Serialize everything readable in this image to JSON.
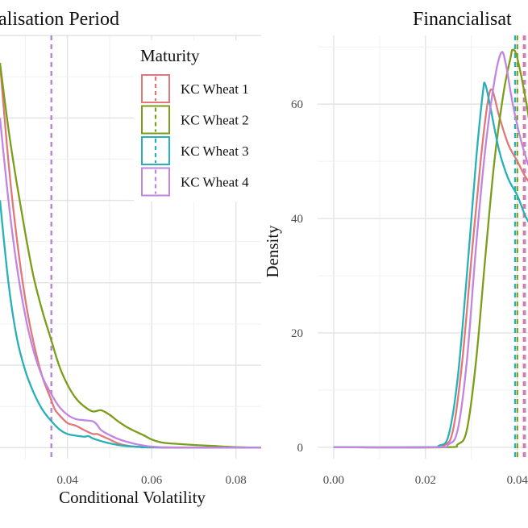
{
  "chart_data": [
    {
      "type": "line",
      "title": "Pre-Financialisation Period",
      "title_visible_text": "alisation Period",
      "xlabel": "Conditional Volatility",
      "ylabel": "",
      "xlim": [
        0.024,
        0.086
      ],
      "ylim": [
        -2,
        75
      ],
      "x_ticks": [
        {
          "value": 0.04,
          "label": "0.04"
        },
        {
          "value": 0.06,
          "label": "0.06"
        },
        {
          "value": 0.08,
          "label": "0.08"
        }
      ],
      "y_grid": [
        0,
        15,
        30,
        45,
        60
      ],
      "grid": true,
      "series": [
        {
          "name": "KC Wheat 1",
          "color": "#e0787a",
          "mean": 0.0362,
          "points": [
            [
              0.024,
              70
            ],
            [
              0.026,
              52
            ],
            [
              0.028,
              38
            ],
            [
              0.03,
              27
            ],
            [
              0.032,
              19
            ],
            [
              0.034,
              13
            ],
            [
              0.036,
              9
            ],
            [
              0.037,
              7
            ],
            [
              0.038,
              6
            ],
            [
              0.04,
              4.5
            ],
            [
              0.042,
              4
            ],
            [
              0.044,
              3.2
            ],
            [
              0.046,
              2.5
            ],
            [
              0.047,
              2.5
            ],
            [
              0.048,
              2.2
            ],
            [
              0.05,
              1.5
            ],
            [
              0.052,
              0.8
            ],
            [
              0.054,
              0.4
            ],
            [
              0.056,
              0.2
            ],
            [
              0.06,
              0.05
            ],
            [
              0.07,
              0
            ],
            [
              0.086,
              0
            ]
          ]
        },
        {
          "name": "KC Wheat 2",
          "color": "#7b9e1a",
          "mean": 0.0362,
          "points": [
            [
              0.024,
              70
            ],
            [
              0.026,
              58
            ],
            [
              0.028,
              48
            ],
            [
              0.03,
              39
            ],
            [
              0.032,
              31
            ],
            [
              0.034,
              25
            ],
            [
              0.036,
              20
            ],
            [
              0.038,
              15
            ],
            [
              0.04,
              11.5
            ],
            [
              0.042,
              9
            ],
            [
              0.044,
              7.5
            ],
            [
              0.046,
              6.6
            ],
            [
              0.048,
              6.8
            ],
            [
              0.05,
              6
            ],
            [
              0.052,
              4.8
            ],
            [
              0.054,
              3.8
            ],
            [
              0.056,
              3
            ],
            [
              0.058,
              2.3
            ],
            [
              0.06,
              1.5
            ],
            [
              0.062,
              1
            ],
            [
              0.064,
              0.8
            ],
            [
              0.066,
              0.7
            ],
            [
              0.07,
              0.5
            ],
            [
              0.075,
              0.3
            ],
            [
              0.08,
              0.1
            ],
            [
              0.086,
              0
            ]
          ]
        },
        {
          "name": "KC Wheat 3",
          "color": "#27b0b8",
          "mean": 0.0362,
          "points": [
            [
              0.024,
              45
            ],
            [
              0.026,
              30
            ],
            [
              0.028,
              20
            ],
            [
              0.03,
              14
            ],
            [
              0.032,
              10
            ],
            [
              0.034,
              7
            ],
            [
              0.036,
              5
            ],
            [
              0.038,
              3.4
            ],
            [
              0.04,
              2.5
            ],
            [
              0.042,
              2.2
            ],
            [
              0.044,
              2
            ],
            [
              0.045,
              2.1
            ],
            [
              0.046,
              1.7
            ],
            [
              0.048,
              1.2
            ],
            [
              0.05,
              0.8
            ],
            [
              0.052,
              0.5
            ],
            [
              0.054,
              0.3
            ],
            [
              0.056,
              0.2
            ],
            [
              0.058,
              0.1
            ],
            [
              0.06,
              0.05
            ],
            [
              0.086,
              0
            ]
          ]
        },
        {
          "name": "KC Wheat 4",
          "color": "#c285e0",
          "mean": 0.0362,
          "points": [
            [
              0.024,
              60
            ],
            [
              0.026,
              45
            ],
            [
              0.028,
              33
            ],
            [
              0.03,
              24
            ],
            [
              0.032,
              17.5
            ],
            [
              0.034,
              13
            ],
            [
              0.036,
              10
            ],
            [
              0.038,
              7.5
            ],
            [
              0.04,
              6
            ],
            [
              0.042,
              5.2
            ],
            [
              0.044,
              5
            ],
            [
              0.046,
              4.8
            ],
            [
              0.047,
              4.2
            ],
            [
              0.048,
              3.2
            ],
            [
              0.05,
              2.3
            ],
            [
              0.052,
              1.6
            ],
            [
              0.054,
              1.1
            ],
            [
              0.056,
              0.7
            ],
            [
              0.058,
              0.4
            ],
            [
              0.06,
              0.2
            ],
            [
              0.065,
              0.05
            ],
            [
              0.086,
              0
            ]
          ]
        }
      ]
    },
    {
      "type": "line",
      "title": "Financialisation Period",
      "title_visible_text": "Financialisat",
      "xlabel": "",
      "ylabel": "Density",
      "xlim": [
        -0.0035,
        0.0425
      ],
      "ylim": [
        -2,
        72
      ],
      "x_ticks": [
        {
          "value": 0.0,
          "label": "0.00"
        },
        {
          "value": 0.02,
          "label": "0.02"
        },
        {
          "value": 0.04,
          "label": "0.04"
        }
      ],
      "y_ticks": [
        {
          "value": 0,
          "label": "0"
        },
        {
          "value": 20,
          "label": "20"
        },
        {
          "value": 40,
          "label": "40"
        },
        {
          "value": 60,
          "label": "60"
        }
      ],
      "grid": true,
      "series": [
        {
          "name": "KC Wheat 1",
          "color": "#e0787a",
          "mean": 0.0414,
          "points": [
            [
              0.0,
              0
            ],
            [
              0.02,
              0
            ],
            [
              0.024,
              0.3
            ],
            [
              0.026,
              3
            ],
            [
              0.028,
              15
            ],
            [
              0.03,
              33
            ],
            [
              0.032,
              50
            ],
            [
              0.0335,
              60
            ],
            [
              0.0345,
              62.5
            ],
            [
              0.036,
              58
            ],
            [
              0.038,
              53
            ],
            [
              0.04,
              50
            ],
            [
              0.042,
              47
            ],
            [
              0.045,
              44
            ]
          ]
        },
        {
          "name": "KC Wheat 2",
          "color": "#7b9e1a",
          "mean": 0.04,
          "points": [
            [
              0.0,
              0
            ],
            [
              0.024,
              0
            ],
            [
              0.027,
              0.5
            ],
            [
              0.029,
              3
            ],
            [
              0.031,
              15
            ],
            [
              0.033,
              33
            ],
            [
              0.035,
              50
            ],
            [
              0.037,
              62
            ],
            [
              0.0385,
              68
            ],
            [
              0.039,
              69.5
            ],
            [
              0.04,
              68
            ],
            [
              0.042,
              60
            ],
            [
              0.044,
              50
            ],
            [
              0.046,
              45
            ]
          ]
        },
        {
          "name": "KC Wheat 3",
          "color": "#27b0b8",
          "mean": 0.0395,
          "points": [
            [
              0.0,
              0
            ],
            [
              0.02,
              0
            ],
            [
              0.023,
              0.3
            ],
            [
              0.025,
              2
            ],
            [
              0.027,
              12
            ],
            [
              0.029,
              30
            ],
            [
              0.031,
              50
            ],
            [
              0.0325,
              62
            ],
            [
              0.033,
              63.5
            ],
            [
              0.034,
              60
            ],
            [
              0.036,
              52
            ],
            [
              0.038,
              47
            ],
            [
              0.04,
              44
            ],
            [
              0.042,
              40
            ],
            [
              0.044,
              38
            ]
          ]
        },
        {
          "name": "KC Wheat 4",
          "color": "#c285e0",
          "mean": 0.0417,
          "points": [
            [
              0.0,
              0
            ],
            [
              0.022,
              0
            ],
            [
              0.025,
              0.5
            ],
            [
              0.027,
              3
            ],
            [
              0.029,
              15
            ],
            [
              0.031,
              35
            ],
            [
              0.033,
              52
            ],
            [
              0.035,
              64
            ],
            [
              0.0365,
              69
            ],
            [
              0.0375,
              67
            ],
            [
              0.039,
              60
            ],
            [
              0.041,
              53
            ],
            [
              0.043,
              48
            ]
          ]
        }
      ]
    }
  ],
  "legend": {
    "title": "Maturity",
    "placement": "top-right of first panel",
    "items": [
      {
        "label": "KC Wheat 1",
        "color": "#e0787a"
      },
      {
        "label": "KC Wheat 2",
        "color": "#7b9e1a"
      },
      {
        "label": "KC Wheat 3",
        "color": "#27b0b8"
      },
      {
        "label": "KC Wheat 4",
        "color": "#c285e0"
      }
    ]
  }
}
